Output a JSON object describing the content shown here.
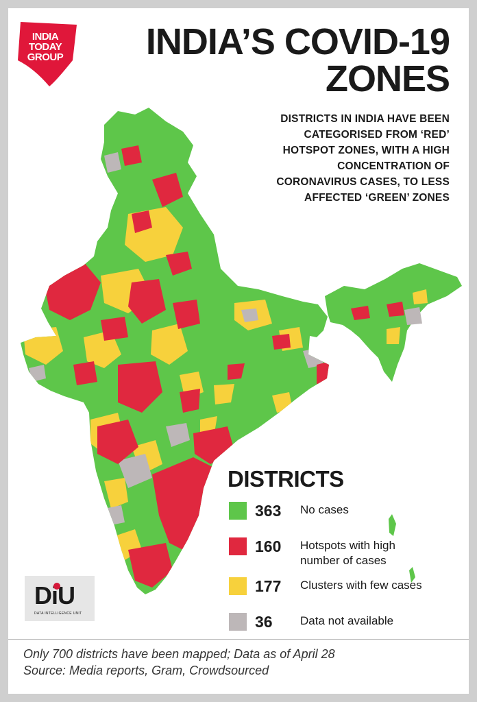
{
  "brand": {
    "logo_lines": [
      "INDIA",
      "TODAY",
      "GROUP"
    ],
    "logo_color": "#e0173a",
    "diu_logo": "DiU",
    "diu_tagline": "DATA INTELLIGENCE UNIT"
  },
  "title_lines": [
    "INDIA’S COVID-19",
    "ZONES"
  ],
  "subtitle_lines": [
    "DISTRICTS IN INDIA HAVE BEEN",
    "CATEGORISED FROM ‘RED’",
    "HOTSPOT ZONES, WITH A HIGH",
    "CONCENTRATION OF",
    "CORONAVIRUS CASES, TO LESS",
    "AFFECTED ‘GREEN’ ZONES"
  ],
  "map": {
    "region": "India",
    "unit": "districts",
    "zone_colors": {
      "green": "#5ec64a",
      "red": "#e0283f",
      "yellow": "#f7d13c",
      "grey": "#bdb7b8"
    }
  },
  "legend": {
    "title": "DISTRICTS",
    "items": [
      {
        "count": "363",
        "label_lines": [
          "No cases"
        ],
        "color": "#5ec64a"
      },
      {
        "count": "160",
        "label_lines": [
          "Hotspots with high",
          "number of cases"
        ],
        "color": "#e0283f"
      },
      {
        "count": "177",
        "label_lines": [
          "Clusters with few cases"
        ],
        "color": "#f7d13c"
      },
      {
        "count": "36",
        "label_lines": [
          "Data not available"
        ],
        "color": "#bdb7b8"
      }
    ]
  },
  "footer_lines": [
    "Only 700 districts have been mapped; Data as of April 28",
    "Source: Media reports, Gram, Crowdsourced"
  ]
}
